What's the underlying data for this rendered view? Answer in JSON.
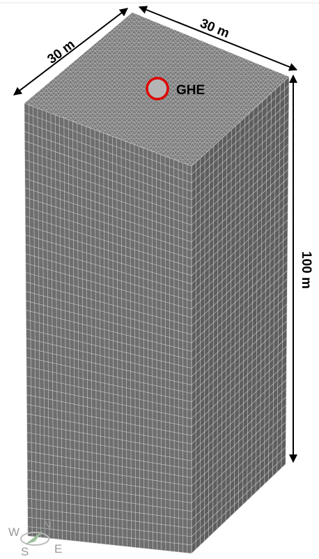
{
  "dimensions": {
    "top_left_width": "30 m",
    "top_right_width": "30 m",
    "height": "100 m"
  },
  "ghe_label": "GHE",
  "compass": {
    "west": "W",
    "north": "N",
    "south": "S",
    "east": "E"
  }
}
